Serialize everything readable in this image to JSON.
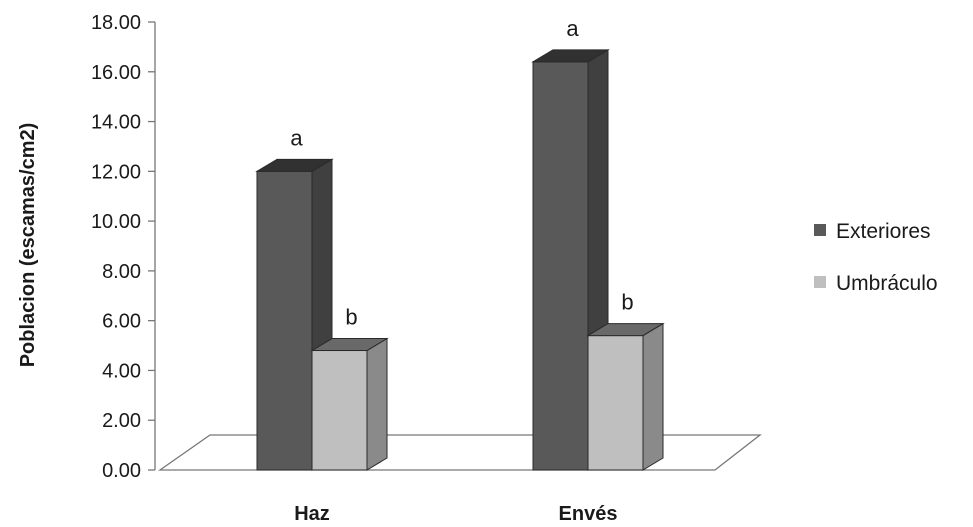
{
  "chart_data": {
    "type": "bar",
    "categories": [
      "Haz",
      "Envés"
    ],
    "series": [
      {
        "name": "Exteriores",
        "values": [
          12.0,
          16.4
        ],
        "letters": [
          "a",
          "a"
        ],
        "color": "#595959"
      },
      {
        "name": "Umbráculo",
        "values": [
          4.8,
          5.4
        ],
        "letters": [
          "b",
          "b"
        ],
        "color": "#bfbfbf"
      }
    ],
    "ylabel": "Poblacion (escamas/cm2)",
    "xlabel": "",
    "ylim": [
      0,
      18
    ],
    "y_ticks": [
      "0.00",
      "2.00",
      "4.00",
      "6.00",
      "8.00",
      "10.00",
      "12.00",
      "14.00",
      "16.00",
      "18.00"
    ],
    "style": "3d-clustered-column",
    "grid": false,
    "legend_position": "right"
  }
}
